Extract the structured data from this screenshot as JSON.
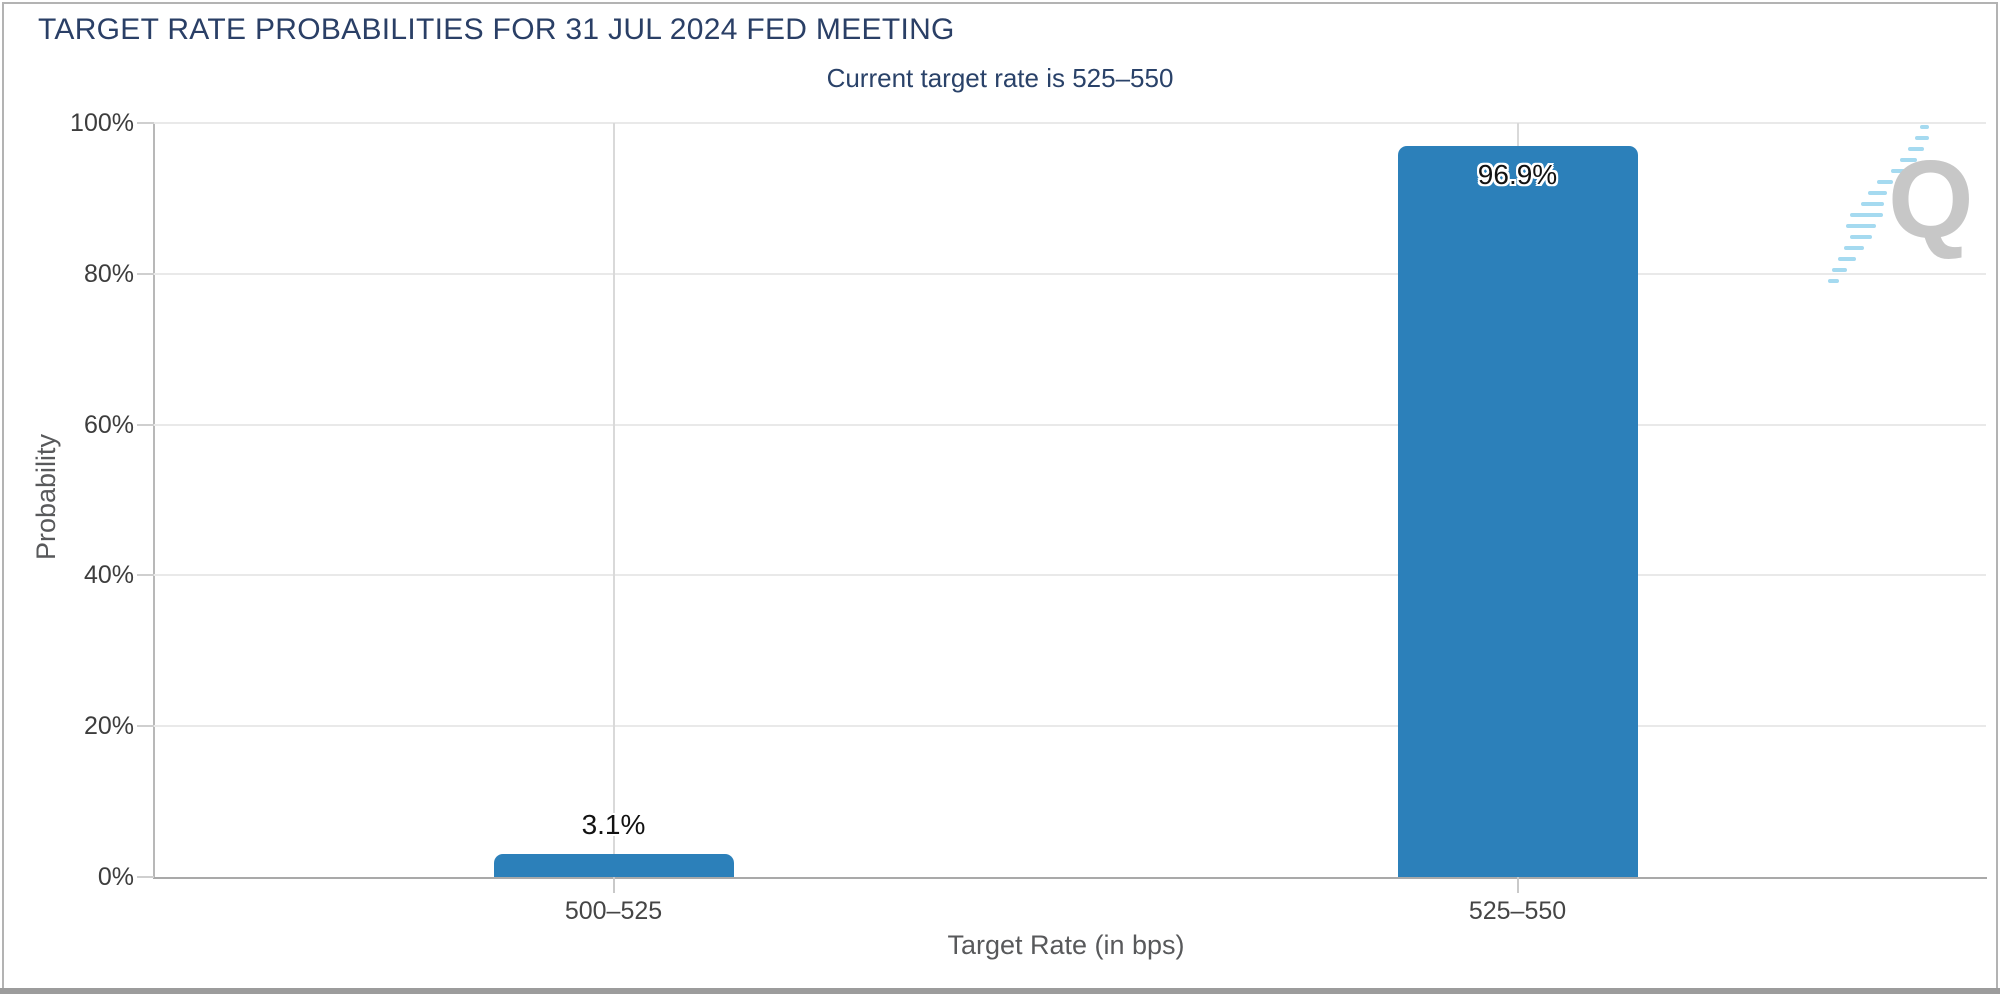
{
  "header": {
    "title": "TARGET RATE PROBABILITIES FOR 31 JUL 2024 FED MEETING",
    "subtitle": "Current target rate is 525–550"
  },
  "watermark": {
    "letter": "Q"
  },
  "colors": {
    "title_navy": "#2a3f66",
    "bar_blue": "#2c80ba",
    "axis_text": "#3d3d3d",
    "axis_title_gray": "#58595b",
    "gridline": "#e9e9e9",
    "baseline": "#a9a9a9",
    "watermark_gray": "#c7c7c7",
    "watermark_blue": "#a5daf0"
  },
  "chart_data": {
    "type": "bar",
    "title": "TARGET RATE PROBABILITIES FOR 31 JUL 2024 FED MEETING",
    "subtitle": "Current target rate is 525–550",
    "categories": [
      "500–525",
      "525–550"
    ],
    "values": [
      3.1,
      96.9
    ],
    "value_labels": [
      "3.1%",
      "96.9%"
    ],
    "xlabel": "Target Rate (in bps)",
    "ylabel": "Probability",
    "ylim": [
      0,
      100
    ],
    "yticks": [
      100,
      80,
      60,
      40,
      20,
      0
    ],
    "ytick_labels": [
      "100%",
      "80%",
      "60%",
      "40%",
      "20%",
      "0%"
    ],
    "grid": true,
    "legend": "none",
    "bar_color": "#2c80ba"
  }
}
